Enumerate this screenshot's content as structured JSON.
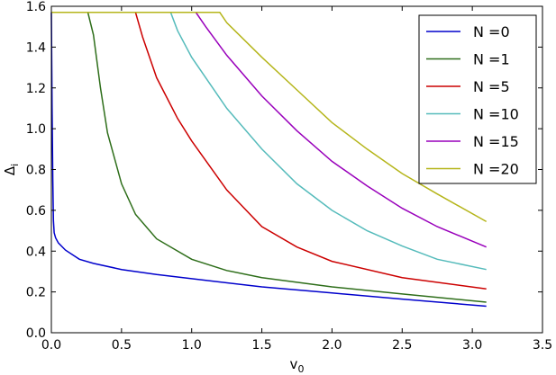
{
  "chart_data": {
    "type": "line",
    "title": "",
    "xlabel": "v",
    "xlabel_sub": "0",
    "ylabel": "Δ",
    "ylabel_sub": "i",
    "xlim": [
      0.0,
      3.5
    ],
    "ylim": [
      0.0,
      1.6
    ],
    "x_ticks": [
      0.0,
      0.5,
      1.0,
      1.5,
      2.0,
      2.5,
      3.0,
      3.5
    ],
    "x_tick_labels": [
      "0.0",
      "0.5",
      "1.0",
      "1.5",
      "2.0",
      "2.5",
      "3.0",
      "3.5"
    ],
    "y_ticks": [
      0.0,
      0.2,
      0.4,
      0.6,
      0.8,
      1.0,
      1.2,
      1.4,
      1.6
    ],
    "y_tick_labels": [
      "0.0",
      "0.2",
      "0.4",
      "0.6",
      "0.8",
      "1.0",
      "1.2",
      "1.4",
      "1.6"
    ],
    "grid": false,
    "legend_position": "top-right",
    "series": [
      {
        "name": "N =0",
        "color": "#0000cc",
        "x": [
          0.0,
          0.005,
          0.01,
          0.015,
          0.02,
          0.03,
          0.05,
          0.1,
          0.2,
          0.3,
          0.5,
          0.75,
          1.0,
          1.5,
          2.0,
          2.5,
          3.1
        ],
        "y": [
          1.57,
          1.1,
          0.75,
          0.55,
          0.49,
          0.465,
          0.44,
          0.405,
          0.36,
          0.34,
          0.31,
          0.285,
          0.265,
          0.225,
          0.195,
          0.165,
          0.13
        ]
      },
      {
        "name": "N =1",
        "color": "#2e6e1a",
        "x": [
          0.0,
          0.26,
          0.3,
          0.35,
          0.4,
          0.5,
          0.6,
          0.75,
          1.0,
          1.25,
          1.5,
          2.0,
          2.5,
          3.1
        ],
        "y": [
          1.57,
          1.57,
          1.46,
          1.2,
          0.98,
          0.73,
          0.58,
          0.46,
          0.36,
          0.305,
          0.27,
          0.225,
          0.19,
          0.15
        ]
      },
      {
        "name": "N =5",
        "color": "#cc0000",
        "x": [
          0.0,
          0.6,
          0.65,
          0.75,
          0.9,
          1.0,
          1.25,
          1.5,
          1.75,
          2.0,
          2.5,
          3.1
        ],
        "y": [
          1.57,
          1.57,
          1.45,
          1.25,
          1.05,
          0.94,
          0.7,
          0.52,
          0.42,
          0.35,
          0.27,
          0.215
        ]
      },
      {
        "name": "N =10",
        "color": "#55bbbb",
        "x": [
          0.0,
          0.85,
          0.9,
          1.0,
          1.25,
          1.5,
          1.75,
          2.0,
          2.25,
          2.5,
          2.75,
          3.1
        ],
        "y": [
          1.57,
          1.57,
          1.48,
          1.35,
          1.1,
          0.9,
          0.73,
          0.6,
          0.5,
          0.425,
          0.36,
          0.31
        ]
      },
      {
        "name": "N =15",
        "color": "#9900bb",
        "x": [
          0.0,
          1.03,
          1.1,
          1.25,
          1.5,
          1.75,
          2.0,
          2.25,
          2.5,
          2.75,
          3.1
        ],
        "y": [
          1.57,
          1.57,
          1.5,
          1.36,
          1.16,
          0.99,
          0.84,
          0.72,
          0.61,
          0.52,
          0.42
        ]
      },
      {
        "name": "N =20",
        "color": "#b5b51a",
        "x": [
          0.0,
          1.2,
          1.25,
          1.5,
          1.75,
          2.0,
          2.25,
          2.5,
          2.75,
          3.1
        ],
        "y": [
          1.57,
          1.57,
          1.52,
          1.35,
          1.19,
          1.03,
          0.9,
          0.78,
          0.68,
          0.545
        ]
      }
    ]
  }
}
